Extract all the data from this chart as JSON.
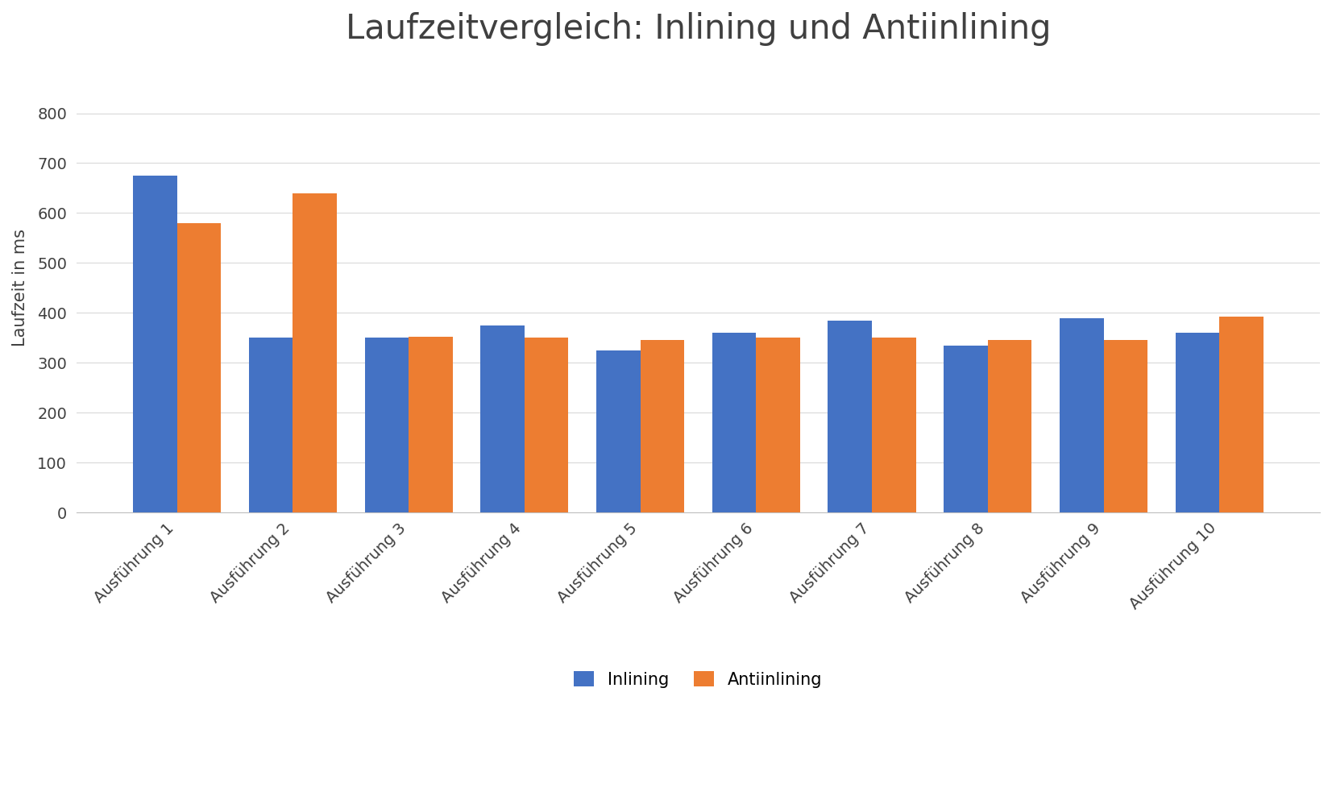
{
  "title": "Laufzeitvergleich: Inlining und Antiinlining",
  "ylabel": "Laufzeit in ms",
  "categories": [
    "Ausführung 1",
    "Ausführung 2",
    "Ausführung 3",
    "Ausführung 4",
    "Ausführung 5",
    "Ausführung 6",
    "Ausführung 7",
    "Ausführung 8",
    "Ausführung 9",
    "Ausführung 10"
  ],
  "inlining": [
    675,
    350,
    350,
    375,
    325,
    360,
    385,
    335,
    390,
    360
  ],
  "antiinlining": [
    580,
    640,
    352,
    350,
    345,
    350,
    350,
    345,
    345,
    393
  ],
  "color_inlining": "#4472C4",
  "color_antiinlining": "#ED7D31",
  "legend_inlining": "Inlining",
  "legend_antiinlining": "Antiinlining",
  "ylim": [
    0,
    900
  ],
  "yticks": [
    0,
    100,
    200,
    300,
    400,
    500,
    600,
    700,
    800
  ],
  "title_fontsize": 30,
  "label_fontsize": 15,
  "tick_fontsize": 14,
  "legend_fontsize": 15,
  "background_color": "#FFFFFF",
  "grid_color": "#D9D9D9",
  "bar_width": 0.38
}
